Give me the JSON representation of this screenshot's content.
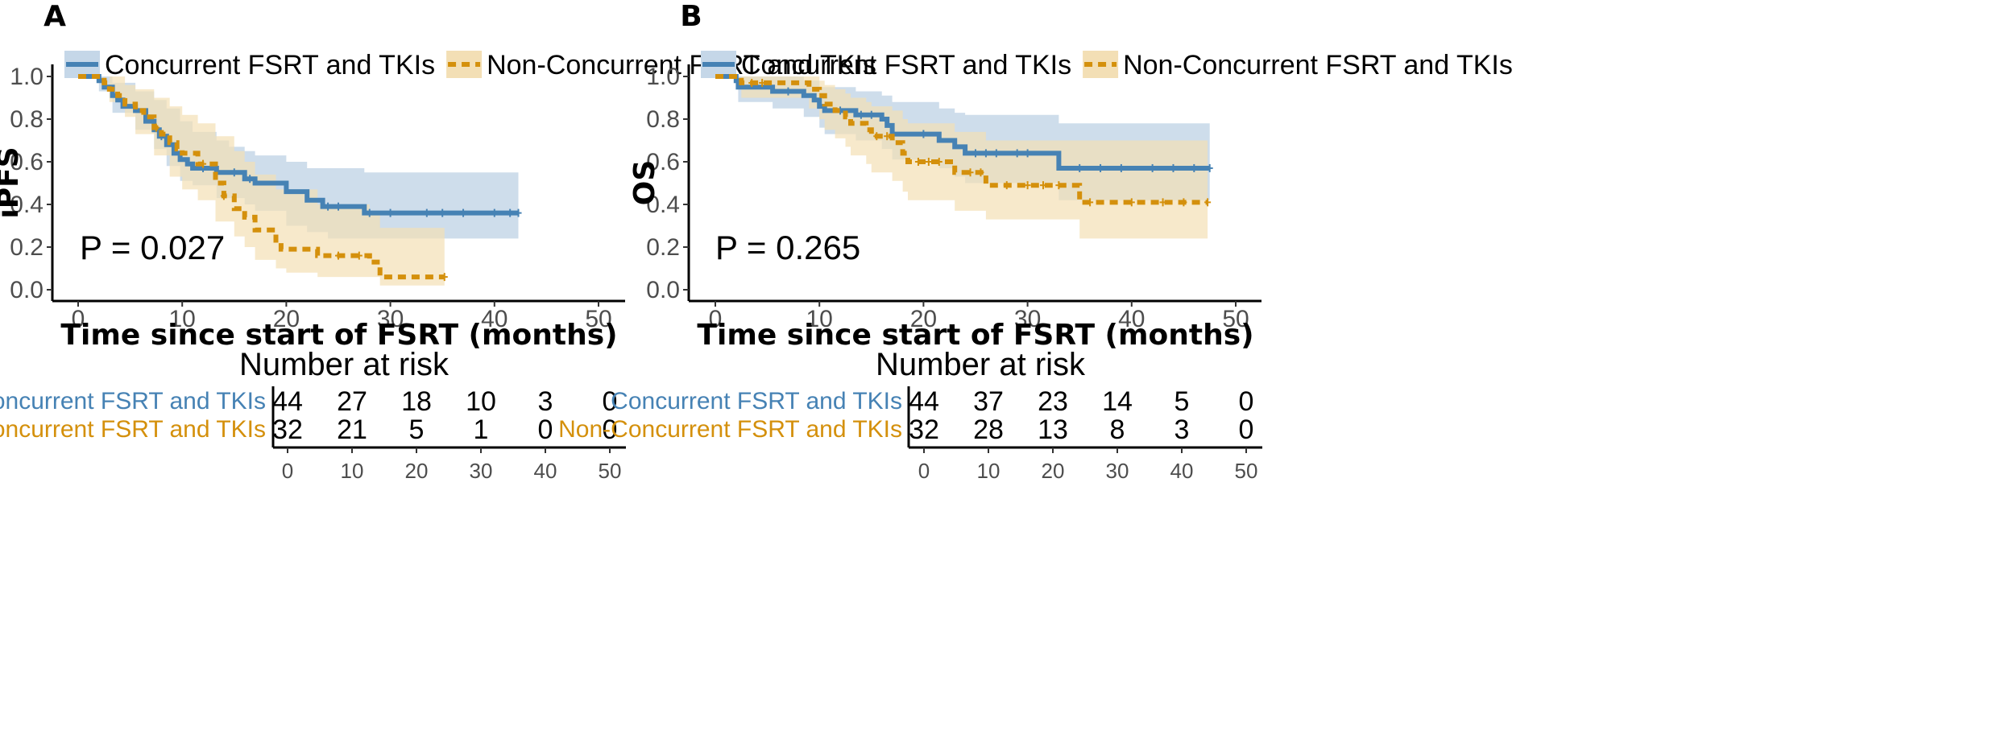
{
  "colors": {
    "concurrent": "#4682b4",
    "concurrent_band": "#c5d7e8",
    "nonconcurrent": "#d4900c",
    "nonconcurrent_band": "#f3dfb5",
    "axis": "#000000",
    "tick_text": "#4d4d4d"
  },
  "icons": [
    "legend-line-concurrent-icon",
    "legend-line-nonconcurrent-icon"
  ],
  "chart_data": [
    {
      "type": "line",
      "panel_tag": "A",
      "title": "",
      "xlabel": "Time since start of FSRT (months)",
      "ylabel": "iPFS",
      "xlim": [
        0,
        50
      ],
      "ylim": [
        0,
        1
      ],
      "x_ticks": [
        0,
        10,
        20,
        30,
        40,
        50
      ],
      "y_ticks": [
        0.0,
        0.2,
        0.4,
        0.6,
        0.8,
        1.0
      ],
      "y_tick_labels": [
        "0.0",
        "0.2",
        "0.4",
        "0.6",
        "0.8",
        "1.0"
      ],
      "grid": false,
      "legend": {
        "position": "top",
        "entries": [
          "Concurrent FSRT and TKIs",
          "Non-Concurrent FSRT and TKIs"
        ]
      },
      "annotation": "P = 0.027",
      "series": [
        {
          "name": "Concurrent FSRT and TKIs",
          "style": "solid",
          "steps": [
            [
              0,
              1.0
            ],
            [
              2,
              0.98
            ],
            [
              2.5,
              0.95
            ],
            [
              3.3,
              0.91
            ],
            [
              3.8,
              0.89
            ],
            [
              4.3,
              0.86
            ],
            [
              5.5,
              0.84
            ],
            [
              6.5,
              0.79
            ],
            [
              7.3,
              0.75
            ],
            [
              7.8,
              0.72
            ],
            [
              8.5,
              0.68
            ],
            [
              9.2,
              0.64
            ],
            [
              9.8,
              0.61
            ],
            [
              10.5,
              0.59
            ],
            [
              11,
              0.57
            ],
            [
              13.3,
              0.55
            ],
            [
              14.5,
              0.55
            ],
            [
              16,
              0.52
            ],
            [
              17,
              0.5
            ],
            [
              19.5,
              0.5
            ],
            [
              20,
              0.46
            ],
            [
              22,
              0.42
            ],
            [
              23.5,
              0.39
            ],
            [
              27.5,
              0.36
            ],
            [
              42.3,
              0.36
            ]
          ],
          "censor_x": [
            8,
            12,
            15,
            16.5,
            24,
            25,
            28,
            30,
            33.5,
            35,
            37,
            40,
            41.5,
            42.3
          ],
          "ci_lower": [
            [
              0,
              1.0
            ],
            [
              2,
              0.93
            ],
            [
              3.3,
              0.83
            ],
            [
              5.5,
              0.75
            ],
            [
              7.3,
              0.66
            ],
            [
              8.5,
              0.58
            ],
            [
              9.8,
              0.51
            ],
            [
              11,
              0.49
            ],
            [
              13.3,
              0.43
            ],
            [
              16,
              0.4
            ],
            [
              17,
              0.37
            ],
            [
              20,
              0.3
            ],
            [
              22,
              0.27
            ],
            [
              24,
              0.24
            ],
            [
              42.3,
              0.24
            ]
          ],
          "ci_upper": [
            [
              0,
              1.0
            ],
            [
              3.3,
              0.97
            ],
            [
              5.5,
              0.93
            ],
            [
              7.3,
              0.89
            ],
            [
              8.5,
              0.85
            ],
            [
              9.8,
              0.79
            ],
            [
              11,
              0.74
            ],
            [
              13.3,
              0.7
            ],
            [
              14.5,
              0.67
            ],
            [
              16,
              0.65
            ],
            [
              17,
              0.63
            ],
            [
              20,
              0.6
            ],
            [
              22,
              0.57
            ],
            [
              27.5,
              0.55
            ],
            [
              42.3,
              0.55
            ]
          ]
        },
        {
          "name": "Non-Concurrent FSRT and TKIs",
          "style": "dashed",
          "steps": [
            [
              0,
              1.0
            ],
            [
              2.5,
              0.97
            ],
            [
              3,
              0.94
            ],
            [
              3.8,
              0.91
            ],
            [
              4.5,
              0.87
            ],
            [
              5.5,
              0.84
            ],
            [
              6.3,
              0.81
            ],
            [
              7.3,
              0.76
            ],
            [
              8,
              0.73
            ],
            [
              8.8,
              0.69
            ],
            [
              9.5,
              0.66
            ],
            [
              10,
              0.64
            ],
            [
              11.5,
              0.59
            ],
            [
              13.2,
              0.5
            ],
            [
              14,
              0.44
            ],
            [
              15,
              0.38
            ],
            [
              16,
              0.34
            ],
            [
              17,
              0.28
            ],
            [
              19,
              0.22
            ],
            [
              19.5,
              0.19
            ],
            [
              23,
              0.16
            ],
            [
              28,
              0.13
            ],
            [
              29,
              0.06
            ],
            [
              35.2,
              0.06
            ]
          ],
          "censor_x": [
            7.5,
            12,
            14,
            25,
            27,
            35.2
          ],
          "ci_lower": [
            [
              0,
              1.0
            ],
            [
              3,
              0.88
            ],
            [
              4.5,
              0.81
            ],
            [
              5.5,
              0.73
            ],
            [
              7.3,
              0.63
            ],
            [
              8.8,
              0.53
            ],
            [
              10,
              0.47
            ],
            [
              11.5,
              0.42
            ],
            [
              13.2,
              0.32
            ],
            [
              15,
              0.25
            ],
            [
              16,
              0.2
            ],
            [
              17,
              0.14
            ],
            [
              19,
              0.1
            ],
            [
              20,
              0.08
            ],
            [
              23,
              0.06
            ],
            [
              29,
              0.02
            ],
            [
              35.2,
              0.02
            ]
          ],
          "ci_upper": [
            [
              0,
              1.0
            ],
            [
              4.5,
              0.96
            ],
            [
              5.5,
              0.94
            ],
            [
              7.3,
              0.9
            ],
            [
              8.8,
              0.86
            ],
            [
              10,
              0.82
            ],
            [
              11.5,
              0.78
            ],
            [
              13.2,
              0.72
            ],
            [
              15,
              0.65
            ],
            [
              16,
              0.6
            ],
            [
              17,
              0.54
            ],
            [
              19,
              0.47
            ],
            [
              23,
              0.4
            ],
            [
              28,
              0.35
            ],
            [
              29,
              0.29
            ],
            [
              35.2,
              0.29
            ]
          ]
        }
      ],
      "risk_table": {
        "title": "Number at risk",
        "times": [
          0,
          10,
          20,
          30,
          40,
          50
        ],
        "rows": [
          {
            "label": "Concurrent FSRT and TKIs",
            "values": [
              44,
              27,
              18,
              10,
              3,
              0
            ]
          },
          {
            "label": "Non-Concurrent FSRT and TKIs",
            "values": [
              32,
              21,
              5,
              1,
              0,
              0
            ]
          }
        ]
      }
    },
    {
      "type": "line",
      "panel_tag": "B",
      "title": "",
      "xlabel": "Time since start of FSRT (months)",
      "ylabel": "OS",
      "xlim": [
        0,
        50
      ],
      "ylim": [
        0,
        1
      ],
      "x_ticks": [
        0,
        10,
        20,
        30,
        40,
        50
      ],
      "y_ticks": [
        0.0,
        0.2,
        0.4,
        0.6,
        0.8,
        1.0
      ],
      "y_tick_labels": [
        "0.0",
        "0.2",
        "0.4",
        "0.6",
        "0.8",
        "1.0"
      ],
      "grid": false,
      "legend": {
        "position": "top",
        "entries": [
          "Concurrent FSRT and TKIs",
          "Non-Concurrent FSRT and TKIs"
        ]
      },
      "annotation": "P = 0.265",
      "series": [
        {
          "name": "Concurrent FSRT and TKIs",
          "style": "solid",
          "steps": [
            [
              0,
              1.0
            ],
            [
              2,
              0.98
            ],
            [
              2.2,
              0.95
            ],
            [
              5.5,
              0.93
            ],
            [
              8.5,
              0.91
            ],
            [
              9.5,
              0.89
            ],
            [
              10,
              0.86
            ],
            [
              10.5,
              0.84
            ],
            [
              13.5,
              0.82
            ],
            [
              16,
              0.8
            ],
            [
              16.5,
              0.77
            ],
            [
              17,
              0.73
            ],
            [
              21.5,
              0.7
            ],
            [
              23,
              0.67
            ],
            [
              24,
              0.64
            ],
            [
              33,
              0.57
            ],
            [
              47.5,
              0.57
            ]
          ],
          "censor_x": [
            7,
            12,
            14,
            15,
            20,
            25,
            26,
            27,
            29,
            30,
            35,
            37,
            39,
            42,
            44,
            46,
            47.5
          ],
          "ci_lower": [
            [
              0,
              1.0
            ],
            [
              2.2,
              0.88
            ],
            [
              5.5,
              0.85
            ],
            [
              8.5,
              0.81
            ],
            [
              10,
              0.76
            ],
            [
              10.5,
              0.73
            ],
            [
              13.5,
              0.7
            ],
            [
              16,
              0.66
            ],
            [
              17,
              0.61
            ],
            [
              21.5,
              0.57
            ],
            [
              23,
              0.53
            ],
            [
              24,
              0.5
            ],
            [
              33,
              0.42
            ],
            [
              47.5,
              0.42
            ]
          ],
          "ci_upper": [
            [
              0,
              1.0
            ],
            [
              5.5,
              1.0
            ],
            [
              8.5,
              0.98
            ],
            [
              10,
              0.95
            ],
            [
              13.5,
              0.93
            ],
            [
              16,
              0.91
            ],
            [
              17,
              0.88
            ],
            [
              21.5,
              0.85
            ],
            [
              23,
              0.83
            ],
            [
              24,
              0.82
            ],
            [
              33,
              0.78
            ],
            [
              47.5,
              0.78
            ]
          ]
        },
        {
          "name": "Non-Concurrent FSRT and TKIs",
          "style": "dashed",
          "steps": [
            [
              0,
              1.0
            ],
            [
              2.5,
              0.97
            ],
            [
              9,
              0.94
            ],
            [
              10,
              0.91
            ],
            [
              10.5,
              0.87
            ],
            [
              11.5,
              0.84
            ],
            [
              12.5,
              0.81
            ],
            [
              13,
              0.78
            ],
            [
              14.5,
              0.75
            ],
            [
              15,
              0.72
            ],
            [
              17,
              0.69
            ],
            [
              18,
              0.64
            ],
            [
              18.5,
              0.6
            ],
            [
              23,
              0.55
            ],
            [
              26,
              0.49
            ],
            [
              35,
              0.41
            ],
            [
              47.3,
              0.41
            ]
          ],
          "censor_x": [
            3.5,
            4.5,
            15.5,
            16.5,
            19.5,
            20.5,
            21.5,
            24.5,
            25.5,
            28,
            30,
            31.5,
            33,
            36,
            40,
            43,
            45,
            47.3
          ],
          "ci_lower": [
            [
              0,
              1.0
            ],
            [
              2.5,
              0.9
            ],
            [
              9,
              0.85
            ],
            [
              10,
              0.8
            ],
            [
              10.5,
              0.75
            ],
            [
              11.5,
              0.71
            ],
            [
              12.5,
              0.67
            ],
            [
              13,
              0.63
            ],
            [
              14.5,
              0.59
            ],
            [
              15,
              0.55
            ],
            [
              17,
              0.51
            ],
            [
              18,
              0.46
            ],
            [
              18.5,
              0.42
            ],
            [
              23,
              0.37
            ],
            [
              26,
              0.33
            ],
            [
              35,
              0.24
            ],
            [
              47.3,
              0.24
            ]
          ],
          "ci_upper": [
            [
              0,
              1.0
            ],
            [
              9,
              1.0
            ],
            [
              10,
              0.98
            ],
            [
              10.5,
              0.96
            ],
            [
              11.5,
              0.94
            ],
            [
              12.5,
              0.92
            ],
            [
              13,
              0.9
            ],
            [
              14.5,
              0.88
            ],
            [
              15,
              0.86
            ],
            [
              17,
              0.84
            ],
            [
              18,
              0.8
            ],
            [
              18.5,
              0.78
            ],
            [
              23,
              0.74
            ],
            [
              26,
              0.7
            ],
            [
              35,
              0.7
            ],
            [
              47.3,
              0.7
            ]
          ]
        }
      ],
      "risk_table": {
        "title": "Number at risk",
        "times": [
          0,
          10,
          20,
          30,
          40,
          50
        ],
        "rows": [
          {
            "label": "Concurrent FSRT and TKIs",
            "values": [
              44,
              37,
              23,
              14,
              5,
              0
            ]
          },
          {
            "label": "Non-Concurrent FSRT and TKIs",
            "values": [
              32,
              28,
              13,
              8,
              3,
              0
            ]
          }
        ]
      }
    }
  ]
}
